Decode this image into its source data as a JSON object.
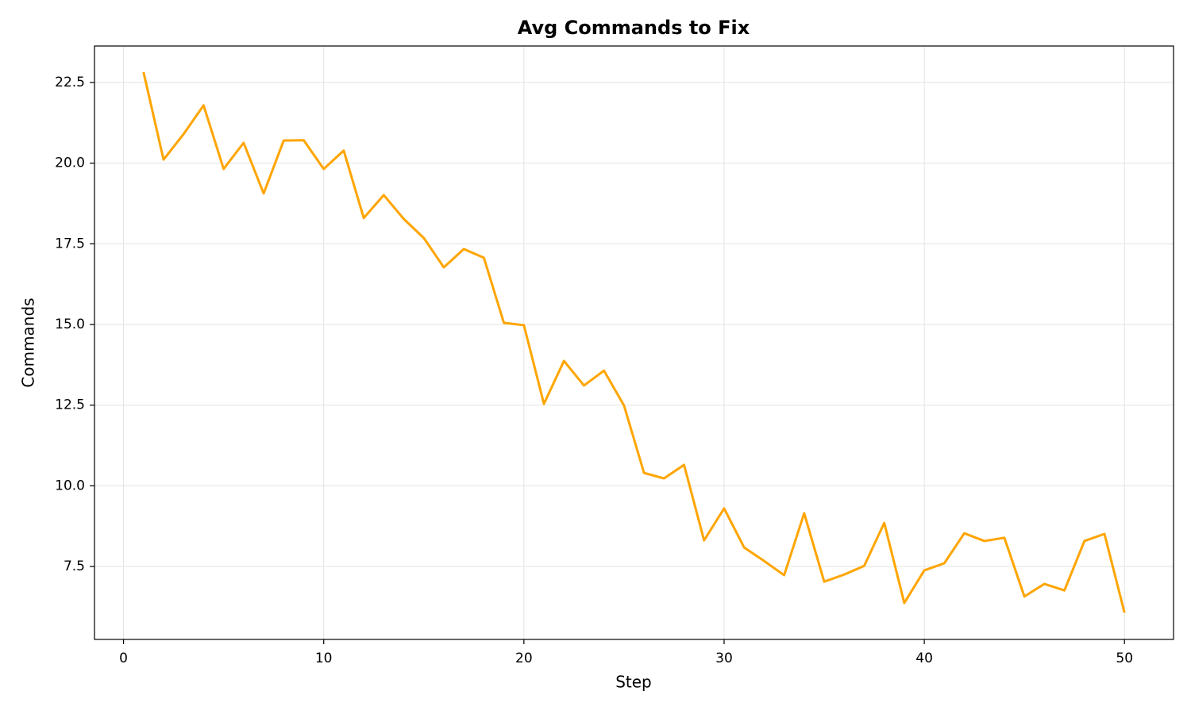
{
  "chart_data": {
    "type": "line",
    "title": "Avg Commands to Fix",
    "x_label": "Step",
    "y_label": "Commands",
    "x": [
      1,
      2,
      3,
      4,
      5,
      6,
      7,
      8,
      9,
      10,
      11,
      12,
      13,
      14,
      15,
      16,
      17,
      18,
      19,
      20,
      21,
      22,
      23,
      24,
      25,
      26,
      27,
      28,
      29,
      30,
      31,
      32,
      33,
      34,
      35,
      36,
      37,
      38,
      39,
      40,
      41,
      42,
      43,
      44,
      45,
      46,
      47,
      48,
      49,
      50
    ],
    "series": [
      {
        "name": "Avg Commands",
        "color": "#ffa500",
        "values": [
          22.82,
          20.11,
          20.9,
          21.79,
          19.82,
          20.63,
          19.06,
          20.7,
          20.71,
          19.82,
          20.39,
          18.3,
          19.01,
          18.27,
          17.68,
          16.77,
          17.34,
          17.07,
          15.05,
          14.98,
          12.54,
          13.87,
          13.11,
          13.57,
          12.49,
          10.4,
          10.23,
          10.65,
          8.31,
          9.3,
          8.09,
          7.67,
          7.23,
          9.15,
          7.03,
          7.25,
          7.52,
          8.85,
          6.37,
          7.38,
          7.6,
          8.53,
          8.29,
          8.39,
          6.57,
          6.96,
          6.76,
          8.29,
          8.51,
          6.07
        ]
      }
    ],
    "xlim": [
      -1.45,
      52.45
    ],
    "ylim": [
      5.24,
      23.63
    ],
    "xticks": [
      0,
      10,
      20,
      30,
      40,
      50
    ],
    "yticks": [
      {
        "value": 7.5,
        "label": "7.5"
      },
      {
        "value": 10,
        "label": "10.0"
      },
      {
        "value": 12.5,
        "label": "12.5"
      },
      {
        "value": 15,
        "label": "15.0"
      },
      {
        "value": 17.5,
        "label": "17.5"
      },
      {
        "value": 20,
        "label": "20.0"
      },
      {
        "value": 22.5,
        "label": "22.5"
      }
    ],
    "grid": true
  }
}
